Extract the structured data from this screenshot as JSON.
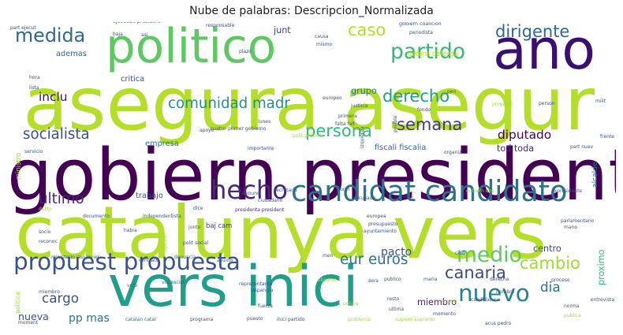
{
  "chart_data": {
    "type": "wordcloud",
    "title": "Nube de palabras: Descripcion_Normalizada",
    "words": [
      {
        "text": "asegura asegur",
        "weight": 100,
        "color": "#b5de2b",
        "rot": 0
      },
      {
        "text": "gobiern presidente",
        "weight": 97,
        "color": "#440154",
        "rot": 0
      },
      {
        "text": "catalunya vers",
        "weight": 92,
        "color": "#b5de2b",
        "rot": 0
      },
      {
        "text": "vers inici",
        "weight": 78,
        "color": "#1f9e89",
        "rot": 0
      },
      {
        "text": "politico",
        "weight": 72,
        "color": "#5ec962",
        "rot": 0
      },
      {
        "text": "ano",
        "weight": 80,
        "color": "#3b0f70",
        "rot": 0
      },
      {
        "text": "candidat candidato",
        "weight": 52,
        "color": "#2c728e",
        "rot": 0
      },
      {
        "text": "propuest propuesta",
        "weight": 42,
        "color": "#3b528b",
        "rot": 0
      },
      {
        "text": "hecho",
        "weight": 46,
        "color": "#482878",
        "rot": 0
      },
      {
        "text": "nuevo",
        "weight": 42,
        "color": "#26828e",
        "rot": 0
      },
      {
        "text": "medio",
        "weight": 38,
        "color": "#5ec962",
        "rot": 0
      },
      {
        "text": "partido",
        "weight": 38,
        "color": "#35b779",
        "rot": 0
      },
      {
        "text": "medida",
        "weight": 34,
        "color": "#31688e",
        "rot": 0
      },
      {
        "text": "caso",
        "weight": 30,
        "color": "#b5de2b",
        "rot": 0
      },
      {
        "text": "derecho",
        "weight": 30,
        "color": "#1f9e89",
        "rot": 0
      },
      {
        "text": "persona",
        "weight": 30,
        "color": "#35b779",
        "rot": 0
      },
      {
        "text": "semana",
        "weight": 30,
        "color": "#443983",
        "rot": 0
      },
      {
        "text": "dirigente",
        "weight": 30,
        "color": "#31688e",
        "rot": 0
      },
      {
        "text": "canaria",
        "weight": 30,
        "color": "#3e4989",
        "rot": 0
      },
      {
        "text": "cambio",
        "weight": 30,
        "color": "#a0da39",
        "rot": 0
      },
      {
        "text": "comunidad madr",
        "weight": 26,
        "color": "#21918c",
        "rot": 0
      },
      {
        "text": "socialista",
        "weight": 26,
        "color": "#3b528b",
        "rot": 0
      },
      {
        "text": "eur euros",
        "weight": 26,
        "color": "#2c728e",
        "rot": 0
      },
      {
        "text": "ultimo",
        "weight": 26,
        "color": "#482878",
        "rot": 0
      },
      {
        "text": "cargo",
        "weight": 24,
        "color": "#3b528b",
        "rot": 0
      },
      {
        "text": "diputado",
        "weight": 22,
        "color": "#440154",
        "rot": 0
      },
      {
        "text": "dia",
        "weight": 24,
        "color": "#2c728e",
        "rot": 0
      },
      {
        "text": "inclu",
        "weight": 22,
        "color": "#3b0f70",
        "rot": 0
      },
      {
        "text": "pacto",
        "weight": 20,
        "color": "#3b528b",
        "rot": 0
      },
      {
        "text": "pp mas",
        "weight": 20,
        "color": "#2c728e",
        "rot": 0
      },
      {
        "text": "nueva",
        "weight": 18,
        "color": "#3b528b",
        "rot": 0
      },
      {
        "text": "tod toda",
        "weight": 16,
        "color": "#482878",
        "rot": 0
      },
      {
        "text": "fiscali fiscalia",
        "weight": 14,
        "color": "#31688e",
        "rot": 0
      },
      {
        "text": "junt",
        "weight": 16,
        "color": "#414487",
        "rot": 0
      },
      {
        "text": "grupo",
        "weight": 16,
        "color": "#2c728e",
        "rot": 0
      },
      {
        "text": "centro",
        "weight": 16,
        "color": "#414487",
        "rot": 0
      },
      {
        "text": "miembro",
        "weight": 16,
        "color": "#482878",
        "rot": 0
      },
      {
        "text": "critica",
        "weight": 14,
        "color": "#3b528b",
        "rot": 0
      },
      {
        "text": "ademas",
        "weight": 14,
        "color": "#31688e",
        "rot": 0
      },
      {
        "text": "trabajo",
        "weight": 14,
        "color": "#3b528b",
        "rot": 0
      },
      {
        "text": "empresa",
        "weight": 14,
        "color": "#2c728e",
        "rot": 0
      },
      {
        "text": "baj cam",
        "weight": 12,
        "color": "#433e85",
        "rot": 0
      },
      {
        "text": "defens defensa",
        "weight": 12,
        "color": "#bddf26",
        "rot": 0
      },
      {
        "text": "proximo",
        "weight": 16,
        "color": "#35b779",
        "rot": -90
      },
      {
        "text": "alcalde",
        "weight": 13,
        "color": "#2c728e",
        "rot": -90
      },
      {
        "text": "ministro",
        "weight": 12,
        "color": "#a0da39",
        "rot": -90
      },
      {
        "text": "politica",
        "weight": 11,
        "color": "#a0da39",
        "rot": -90
      },
      {
        "text": "gobiern coalicion",
        "weight": 9,
        "color": "#3b528b",
        "rot": 0
      },
      {
        "text": "ejecutivo president",
        "weight": 9,
        "color": "#3b528b",
        "rot": 0
      },
      {
        "text": "responsable",
        "weight": 8,
        "color": "#3b528b",
        "rot": 0
      },
      {
        "text": "primer gobierno",
        "weight": 8,
        "color": "#3b528b",
        "rot": 0
      },
      {
        "text": "presidenta president",
        "weight": 8,
        "color": "#482878",
        "rot": 0
      },
      {
        "text": "polit social",
        "weight": 8,
        "color": "#3b528b",
        "rot": 0
      },
      {
        "text": "ministerio javi javier",
        "weight": 8,
        "color": "#3b528b",
        "rot": 0
      },
      {
        "text": "contrato",
        "weight": 8,
        "color": "#3b528b",
        "rot": 0
      },
      {
        "text": "denuncia",
        "weight": 8,
        "color": "#31688e",
        "rot": 0
      },
      {
        "text": "asunto",
        "weight": 8,
        "color": "#3b528b",
        "rot": 0
      },
      {
        "text": "voto",
        "weight": 8,
        "color": "#31688e",
        "rot": 0
      },
      {
        "text": "vot social",
        "weight": 8,
        "color": "#31688e",
        "rot": 0
      },
      {
        "text": "representante",
        "weight": 8,
        "color": "#3b528b",
        "rot": 0
      },
      {
        "text": "espanola",
        "weight": 8,
        "color": "#3b528b",
        "rot": 0
      },
      {
        "text": "objetivo",
        "weight": 7,
        "color": "#b5de2b",
        "rot": 0
      },
      {
        "text": "inici partido",
        "weight": 8,
        "color": "#3b528b",
        "rot": 0
      },
      {
        "text": "catalan catal",
        "weight": 8,
        "color": "#31688e",
        "rot": 0
      },
      {
        "text": "programa",
        "weight": 8,
        "color": "#3b528b",
        "rot": 0
      },
      {
        "text": "problema",
        "weight": 8,
        "color": "#a0da39",
        "rot": 0
      },
      {
        "text": "suprem supremo",
        "weight": 8,
        "color": "#a0da39",
        "rot": 0
      },
      {
        "text": "momento",
        "weight": 8,
        "color": "#3b528b",
        "rot": 0
      },
      {
        "text": "recurso",
        "weight": 8,
        "color": "#a0da39",
        "rot": 0
      },
      {
        "text": "candidatura",
        "weight": 8,
        "color": "#3b528b",
        "rot": 0
      },
      {
        "text": "ultima",
        "weight": 8,
        "color": "#3b528b",
        "rot": 0
      },
      {
        "text": "resto",
        "weight": 8,
        "color": "#3b528b",
        "rot": 0
      },
      {
        "text": "publico",
        "weight": 8,
        "color": "#3b528b",
        "rot": 0
      },
      {
        "text": "maria",
        "weight": 8,
        "color": "#3b528b",
        "rot": 0
      },
      {
        "text": "sera",
        "weight": 8,
        "color": "#3b528b",
        "rot": 0
      },
      {
        "text": "policia",
        "weight": 8,
        "color": "#a0da39",
        "rot": 0
      },
      {
        "text": "proceso",
        "weight": 8,
        "color": "#3b528b",
        "rot": 0
      },
      {
        "text": "norma",
        "weight": 8,
        "color": "#3b528b",
        "rot": 0
      },
      {
        "text": "publica",
        "weight": 7,
        "color": "#a0da39",
        "rot": 0
      },
      {
        "text": "derecha",
        "weight": 8,
        "color": "#3b528b",
        "rot": 0
      },
      {
        "text": "nombre",
        "weight": 7,
        "color": "#3b528b",
        "rot": 0
      },
      {
        "text": "parlamentario",
        "weight": 8,
        "color": "#3b528b",
        "rot": 0
      },
      {
        "text": "mano",
        "weight": 8,
        "color": "#3b528b",
        "rot": 0
      },
      {
        "text": "part nuev",
        "weight": 8,
        "color": "#3b528b",
        "rot": 0
      },
      {
        "text": "expresidente",
        "weight": 8,
        "color": "#3b528b",
        "rot": 0
      },
      {
        "text": "gobiern dos",
        "weight": 8,
        "color": "#a0da39",
        "rot": 0
      },
      {
        "text": "ayuntamiento",
        "weight": 8,
        "color": "#3b528b",
        "rot": 0
      },
      {
        "text": "presupuesto",
        "weight": 8,
        "color": "#3b528b",
        "rot": 0
      },
      {
        "text": "europea",
        "weight": 8,
        "color": "#3b528b",
        "rot": 0
      },
      {
        "text": "secretario",
        "weight": 8,
        "color": "#3b528b",
        "rot": 0
      },
      {
        "text": "ciudadano",
        "weight": 8,
        "color": "#3b528b",
        "rot": 0
      },
      {
        "text": "denunci",
        "weight": 8,
        "color": "#3b528b",
        "rot": 0
      },
      {
        "text": "importante",
        "weight": 8,
        "color": "#3b528b",
        "rot": 0
      },
      {
        "text": "lunes",
        "weight": 8,
        "color": "#3b528b",
        "rot": 0
      },
      {
        "text": "primera",
        "weight": 8,
        "color": "#3b528b",
        "rot": 0
      },
      {
        "text": "falta falt",
        "weight": 8,
        "color": "#3b528b",
        "rot": 0
      },
      {
        "text": "justicia",
        "weight": 8,
        "color": "#3b528b",
        "rot": 0
      },
      {
        "text": "fondo",
        "weight": 8,
        "color": "#3b528b",
        "rot": 0
      },
      {
        "text": "polit politica",
        "weight": 8,
        "color": "#a0da39",
        "rot": 0
      },
      {
        "text": "europeo",
        "weight": 8,
        "color": "#3b528b",
        "rot": 0
      },
      {
        "text": "proyecto",
        "weight": 8,
        "color": "#a0da39",
        "rot": 0
      },
      {
        "text": "person",
        "weight": 8,
        "color": "#3b528b",
        "rot": 0
      },
      {
        "text": "servicio",
        "weight": 8,
        "color": "#3b528b",
        "rot": 0
      },
      {
        "text": "independentista",
        "weight": 8,
        "color": "#3b528b",
        "rot": 0
      },
      {
        "text": "documento",
        "weight": 8,
        "color": "#3b528b",
        "rot": 0
      },
      {
        "text": "junto",
        "weight": 8,
        "color": "#3b528b",
        "rot": 0
      },
      {
        "text": "dice",
        "weight": 8,
        "color": "#3b528b",
        "rot": 0
      },
      {
        "text": "reconoc",
        "weight": 7,
        "color": "#3b528b",
        "rot": 0
      },
      {
        "text": "socio",
        "weight": 7,
        "color": "#3b528b",
        "rot": 0
      },
      {
        "text": "habia",
        "weight": 7,
        "color": "#3b528b",
        "rot": 0
      },
      {
        "text": "delito",
        "weight": 8,
        "color": "#a0da39",
        "rot": 0
      },
      {
        "text": "baja",
        "weight": 8,
        "color": "#3b528b",
        "rot": 0
      },
      {
        "text": "asi",
        "weight": 8,
        "color": "#3b528b",
        "rot": 0
      },
      {
        "text": "lista",
        "weight": 8,
        "color": "#3b528b",
        "rot": 0
      },
      {
        "text": "hora",
        "weight": 8,
        "color": "#3b528b",
        "rot": 0
      },
      {
        "text": "miembro",
        "weight": 7,
        "color": "#3b528b",
        "rot": 0
      },
      {
        "text": "entrevista",
        "weight": 7,
        "color": "#3b528b",
        "rot": 0
      },
      {
        "text": "acusado",
        "weight": 7,
        "color": "#3b528b",
        "rot": 0
      },
      {
        "text": "fuerza",
        "weight": 7,
        "color": "#3b528b",
        "rot": 0
      },
      {
        "text": "puesto",
        "weight": 7,
        "color": "#3b528b",
        "rot": 0
      },
      {
        "text": "moment",
        "weight": 7,
        "color": "#3b528b",
        "rot": 0
      },
      {
        "text": "part ejecut",
        "weight": 7,
        "color": "#3b528b",
        "rot": 0
      },
      {
        "text": "causa",
        "weight": 7,
        "color": "#3b528b",
        "rot": 0
      },
      {
        "text": "izquierda",
        "weight": 7,
        "color": "#3b528b",
        "rot": -90
      },
      {
        "text": "posible",
        "weight": 7,
        "color": "#3b528b",
        "rot": -90
      },
      {
        "text": "iglesia",
        "weight": 7,
        "color": "#a0da39",
        "rot": -90
      },
      {
        "text": "mismo",
        "weight": 7,
        "color": "#3b528b",
        "rot": 0
      },
      {
        "text": "plazo",
        "weight": 7,
        "color": "#3b528b",
        "rot": 0
      },
      {
        "text": "apoyo",
        "weight": 7,
        "color": "#3b528b",
        "rot": 0
      },
      {
        "text": "cuatro",
        "weight": 7,
        "color": "#3b528b",
        "rot": 0
      },
      {
        "text": "periodista",
        "weight": 7,
        "color": "#3b528b",
        "rot": 0
      },
      {
        "text": "organiz",
        "weight": 7,
        "color": "#3b528b",
        "rot": 0
      },
      {
        "text": "form",
        "weight": 7,
        "color": "#3b528b",
        "rot": 0
      },
      {
        "text": "carl",
        "weight": 7,
        "color": "#3b528b",
        "rot": 0
      },
      {
        "text": "men",
        "weight": 7,
        "color": "#3b528b",
        "rot": 0
      },
      {
        "text": "ciud",
        "weight": 7,
        "color": "#3b528b",
        "rot": 0
      },
      {
        "text": "pen",
        "weight": 7,
        "color": "#3b528b",
        "rot": 0
      },
      {
        "text": "frente",
        "weight": 7,
        "color": "#3b528b",
        "rot": 0
      },
      {
        "text": "milit",
        "weight": 7,
        "color": "#3b528b",
        "rot": 0
      },
      {
        "text": "acus pedro",
        "weight": 7,
        "color": "#3b528b",
        "rot": 0
      }
    ]
  }
}
